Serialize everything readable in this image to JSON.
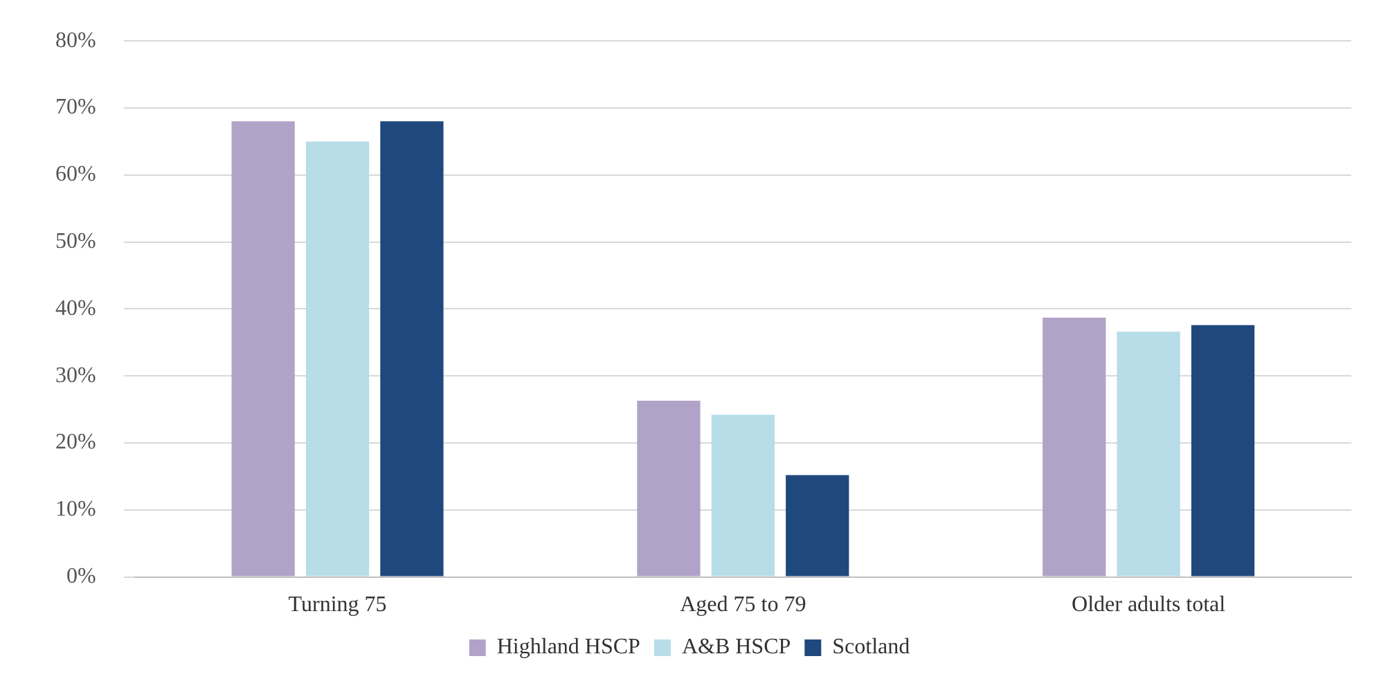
{
  "chart_data": {
    "type": "bar",
    "categories": [
      "Turning 75",
      "Aged 75 to 79",
      "Older adults total"
    ],
    "series": [
      {
        "name": "Highland HSCP",
        "color": "#b1a3c8",
        "values": [
          68.0,
          26.3,
          38.7
        ]
      },
      {
        "name": "A&B HSCP",
        "color": "#b6dde8",
        "values": [
          65.0,
          24.2,
          36.6
        ]
      },
      {
        "name": "Scotland",
        "color": "#1f497d",
        "values": [
          68.0,
          15.2,
          37.6
        ]
      }
    ],
    "ylim": [
      0,
      80
    ],
    "yticks": [
      {
        "value": 0,
        "label": "0%"
      },
      {
        "value": 10,
        "label": "10%"
      },
      {
        "value": 20,
        "label": "20%"
      },
      {
        "value": 30,
        "label": "30%"
      },
      {
        "value": 40,
        "label": "40%"
      },
      {
        "value": 50,
        "label": "50%"
      },
      {
        "value": 60,
        "label": "60%"
      },
      {
        "value": 70,
        "label": "70%"
      },
      {
        "value": 80,
        "label": "80%"
      }
    ],
    "grid": "y",
    "legend": "bottom"
  }
}
